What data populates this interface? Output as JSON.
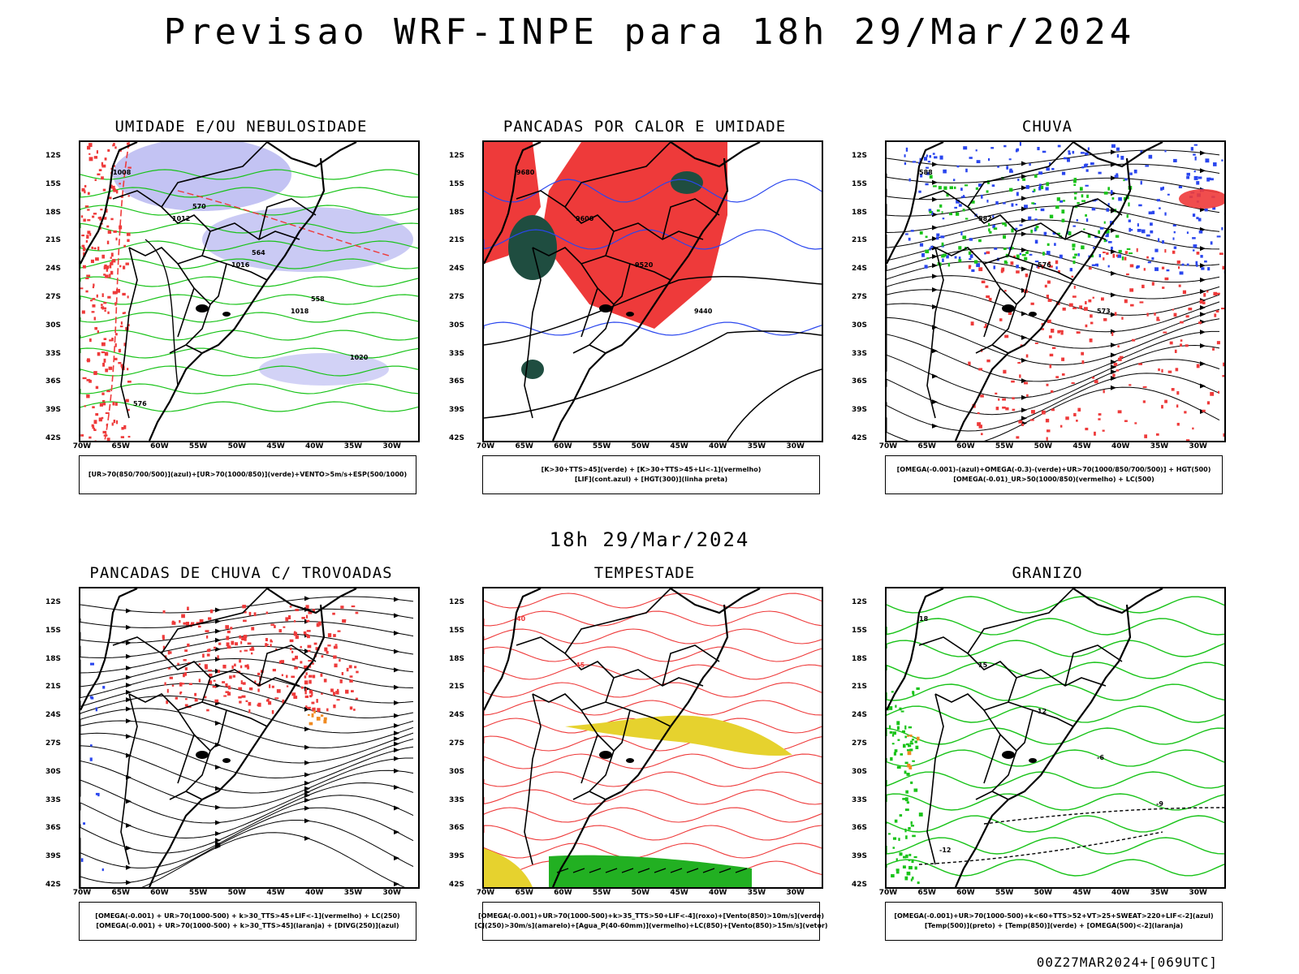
{
  "title": "Previsao WRF-INPE  para 18h 29/Mar/2024",
  "middle_date": "18h 29/Mar/2024",
  "footer_code": "00Z27MAR2024+[069UTC]",
  "axis": {
    "lat_labels": [
      "12S",
      "15S",
      "18S",
      "21S",
      "24S",
      "27S",
      "30S",
      "33S",
      "36S",
      "39S",
      "42S"
    ],
    "lon_labels": [
      "70W",
      "65W",
      "60W",
      "55W",
      "50W",
      "45W",
      "40W",
      "35W",
      "30W"
    ]
  },
  "colors": {
    "green": "#19c319",
    "red": "#ee3a3a",
    "blue": "#2a46ee",
    "lavender": "#b4b4f0",
    "yellow": "#e6d22e",
    "dark": "#1f4d40",
    "orange": "#f08a20"
  },
  "panels": [
    {
      "title": "UMIDADE E/OU NEBULOSIDADE",
      "legend": [
        "[UR>70(850/700/500)](azul)+[UR>70(1000/850)](verde)+VENTO>5m/s+ESP(500/1000)"
      ],
      "contour_labels": [
        "1008",
        "1012",
        "1016",
        "1018",
        "1020",
        "576",
        "570",
        "564",
        "558"
      ]
    },
    {
      "title": "PANCADAS POR CALOR E UMIDADE",
      "legend": [
        "[K>30+TTS>45](verde) + [K>30+TTS>45+LI<-1](vermelho)",
        "[LIF](cont.azul) + [HGT(300)](linha preta)"
      ],
      "contour_labels": [
        "9680",
        "9600",
        "9520",
        "9440"
      ]
    },
    {
      "title": "CHUVA",
      "legend": [
        "[OMEGA(-0.001)-(azul)+OMEGA(-0.3)-(verde)+UR>70(1000/850/700/500)] + HGT(500)",
        "[OMEGA(-0.01)_UR>50(1000/850)(vermelho) + LC(500)"
      ],
      "contour_labels": [
        "588",
        "582",
        "576",
        "573"
      ]
    },
    {
      "title": "PANCADAS DE CHUVA C/ TROVOADAS",
      "legend": [
        "[OMEGA(-0.001) + UR>70(1000-500) + k>30_TTS>45+LIF<-1](vermelho) + LC(250)",
        "[OMEGA(-0.001) + UR>70(1000-500) + k>30_TTS>45](laranja) + [DIVG(250)](azul)"
      ],
      "contour_labels": []
    },
    {
      "title": "TEMPESTADE",
      "legend": [
        "[OMEGA(-0.001)+UR>70(1000-500)+k>35_TTS>50+LIF<-4](roxo)+[Vento(850)>10m/s](verde)",
        "[CJ(250)>30m/s](amarelo)+[Agua_P(40-60mm)](vermelho)+LC(850)+[Vento(850)>15m/s](vetor)"
      ],
      "contour_labels": [
        "40",
        "45"
      ]
    },
    {
      "title": "GRANIZO",
      "legend": [
        "[OMEGA(-0.001)+UR>70(1000-500)+k<60+TTS>52+VT>25+SWEAT>220+LIF<-2](azul)",
        "[Temp(500)](preto) + [Temp(850)](verde) + [OMEGA(500)<-2](laranja)"
      ],
      "contour_labels": [
        "18",
        "15",
        "12",
        "-6",
        "-9",
        "-12"
      ]
    }
  ]
}
